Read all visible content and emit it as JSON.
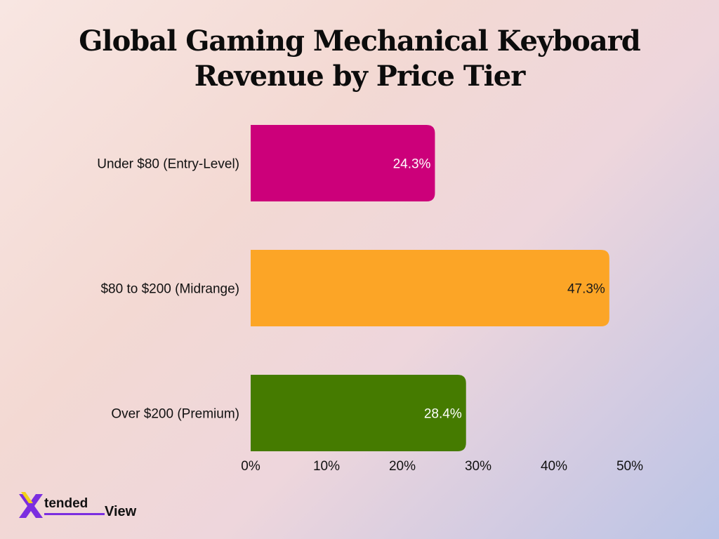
{
  "title_line1": "Global Gaming Mechanical Keyboard",
  "title_line2": "Revenue by Price Tier",
  "chart_data": {
    "type": "bar",
    "orientation": "horizontal",
    "title": "Global Gaming Mechanical Keyboard Revenue by Price Tier",
    "categories": [
      "Under $80 (Entry-Level)",
      "$80 to $200 (Midrange)",
      "Over $200 (Premium)"
    ],
    "values": [
      24.3,
      47.3,
      28.4
    ],
    "value_labels": [
      "24.3%",
      "47.3%",
      "28.4%"
    ],
    "colors": [
      "#cc007a",
      "#fca526",
      "#457b00"
    ],
    "xlim": [
      0,
      50
    ],
    "xticks": [
      0,
      10,
      20,
      30,
      40,
      50
    ],
    "xtick_labels": [
      "0%",
      "10%",
      "20%",
      "30%",
      "40%",
      "50%"
    ],
    "grid": false
  },
  "brand": {
    "mark": "X",
    "name_part1": "tended",
    "name_part2": "View",
    "mark_colors": [
      "#7b2ee0",
      "#f2d21b"
    ]
  }
}
